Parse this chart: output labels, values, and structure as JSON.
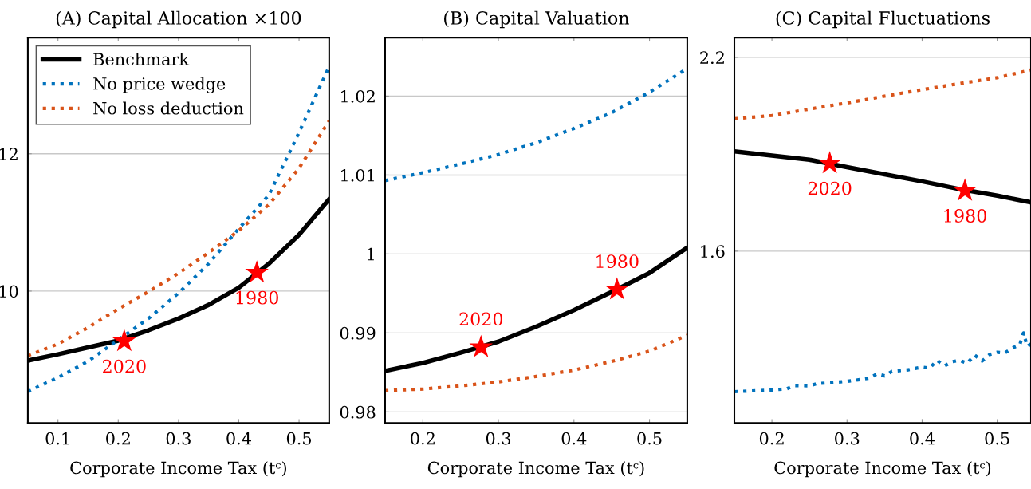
{
  "chart_data": [
    {
      "type": "line",
      "title": "(A) Capital Allocation ×100",
      "xlabel": "Corporate Income Tax (tᶜ)",
      "xlim": [
        0.05,
        0.55
      ],
      "xticks": [
        0.1,
        0.2,
        0.3,
        0.4,
        0.5
      ],
      "ylim": [
        8.08,
        13.69
      ],
      "yticks": [
        10,
        12
      ],
      "grid": "y",
      "legend": "top left",
      "series": [
        {
          "name": "Benchmark",
          "color": "#000000",
          "line_style": "solid",
          "x": [
            0.05,
            0.1,
            0.15,
            0.2,
            0.25,
            0.3,
            0.35,
            0.4,
            0.45,
            0.5,
            0.55
          ],
          "values": [
            8.99,
            9.08,
            9.18,
            9.28,
            9.43,
            9.6,
            9.8,
            10.05,
            10.4,
            10.82,
            11.34
          ]
        },
        {
          "name": "No price wedge",
          "color": "#0072bd",
          "line_style": "dotted",
          "x": [
            0.05,
            0.1,
            0.15,
            0.2,
            0.25,
            0.3,
            0.35,
            0.4,
            0.45,
            0.5,
            0.55
          ],
          "values": [
            8.54,
            8.74,
            8.98,
            9.29,
            9.6,
            9.97,
            10.4,
            10.91,
            11.4,
            12.31,
            13.27
          ]
        },
        {
          "name": "No loss deduction",
          "color": "#d95319",
          "line_style": "dotted",
          "x": [
            0.05,
            0.1,
            0.15,
            0.2,
            0.25,
            0.3,
            0.35,
            0.4,
            0.45,
            0.5,
            0.55
          ],
          "values": [
            9.06,
            9.23,
            9.47,
            9.74,
            9.99,
            10.26,
            10.56,
            10.88,
            11.26,
            11.79,
            12.48
          ]
        },
        {
          "type": "scatter",
          "color": "#ff0000",
          "marker": "star",
          "x": [
            0.21,
            0.43
          ],
          "values": [
            9.27,
            10.27
          ]
        }
      ],
      "annotations": [
        {
          "text": "2020",
          "x": 0.21,
          "y": 9.27
        },
        {
          "text": "1980",
          "x": 0.43,
          "y": 10.27
        }
      ]
    },
    {
      "type": "line",
      "title": "(B) Capital Valuation",
      "xlabel": "Corporate Income Tax (tᶜ)",
      "xlim": [
        0.15,
        0.55
      ],
      "xticks": [
        0.2,
        0.3,
        0.4,
        0.5
      ],
      "ylim": [
        0.9786,
        1.0274
      ],
      "yticks": [
        0.98,
        0.99,
        1,
        1.01,
        1.02
      ],
      "grid": "y",
      "series": [
        {
          "color": "#000000",
          "line_style": "solid",
          "x": [
            0.15,
            0.2,
            0.25,
            0.3,
            0.35,
            0.4,
            0.45,
            0.5,
            0.55
          ],
          "values": [
            0.9852,
            0.9862,
            0.9875,
            0.9889,
            0.9908,
            0.9929,
            0.9952,
            0.9976,
            1.0008
          ]
        },
        {
          "color": "#0072bd",
          "line_style": "dotted",
          "x": [
            0.15,
            0.2,
            0.25,
            0.3,
            0.35,
            0.4,
            0.45,
            0.5,
            0.55
          ],
          "values": [
            1.0093,
            1.0103,
            1.0114,
            1.0126,
            1.0141,
            1.0159,
            1.0179,
            1.0205,
            1.0235
          ]
        },
        {
          "color": "#d95319",
          "line_style": "dotted",
          "x": [
            0.15,
            0.2,
            0.25,
            0.3,
            0.35,
            0.4,
            0.45,
            0.5,
            0.55
          ],
          "values": [
            0.9827,
            0.9829,
            0.9833,
            0.9838,
            0.9845,
            0.9853,
            0.9864,
            0.9877,
            0.9897
          ]
        },
        {
          "type": "scatter",
          "color": "#ff0000",
          "marker": "star",
          "x": [
            0.277,
            0.457
          ],
          "values": [
            0.9882,
            0.9955
          ]
        }
      ],
      "annotations": [
        {
          "text": "2020",
          "x": 0.277,
          "y": 0.9882
        },
        {
          "text": "1980",
          "x": 0.457,
          "y": 0.9955
        }
      ]
    },
    {
      "type": "line",
      "title": "(C) Capital Fluctuations",
      "xlabel": "Corporate Income Tax (tᶜ)",
      "xlim": [
        0.15,
        0.545
      ],
      "xticks": [
        0.2,
        0.3,
        0.4,
        0.5
      ],
      "ylim": [
        1.068,
        2.261
      ],
      "yticks": [
        1.6,
        2.2
      ],
      "grid": "y",
      "series": [
        {
          "color": "#000000",
          "line_style": "solid",
          "x": [
            0.15,
            0.2,
            0.25,
            0.3,
            0.35,
            0.4,
            0.45,
            0.5,
            0.545
          ],
          "values": [
            1.909,
            1.896,
            1.883,
            1.86,
            1.838,
            1.816,
            1.792,
            1.772,
            1.751
          ]
        },
        {
          "color": "#0072bd",
          "line_style": "dotted",
          "x": [
            0.15,
            0.17,
            0.2,
            0.22,
            0.23,
            0.25,
            0.26,
            0.28,
            0.3,
            0.31,
            0.33,
            0.34,
            0.35,
            0.36,
            0.38,
            0.4,
            0.41,
            0.42,
            0.43,
            0.44,
            0.45,
            0.46,
            0.47,
            0.48,
            0.49,
            0.5,
            0.51,
            0.52,
            0.53,
            0.535,
            0.54,
            0.545
          ],
          "values": [
            1.165,
            1.167,
            1.17,
            1.174,
            1.184,
            1.183,
            1.19,
            1.193,
            1.197,
            1.2,
            1.207,
            1.22,
            1.214,
            1.228,
            1.232,
            1.241,
            1.238,
            1.262,
            1.245,
            1.258,
            1.262,
            1.253,
            1.278,
            1.26,
            1.28,
            1.287,
            1.285,
            1.3,
            1.31,
            1.347,
            1.305,
            1.313
          ]
        },
        {
          "color": "#d95319",
          "line_style": "dotted",
          "x": [
            0.15,
            0.2,
            0.25,
            0.3,
            0.35,
            0.4,
            0.45,
            0.5,
            0.545
          ],
          "values": [
            2.01,
            2.02,
            2.04,
            2.059,
            2.08,
            2.1,
            2.119,
            2.137,
            2.161
          ]
        },
        {
          "type": "scatter",
          "color": "#ff0000",
          "marker": "star",
          "x": [
            0.277,
            0.457
          ],
          "values": [
            1.872,
            1.787
          ]
        }
      ],
      "annotations": [
        {
          "text": "2020",
          "x": 0.277,
          "y": 1.872
        },
        {
          "text": "1980",
          "x": 0.457,
          "y": 1.787
        }
      ]
    }
  ]
}
